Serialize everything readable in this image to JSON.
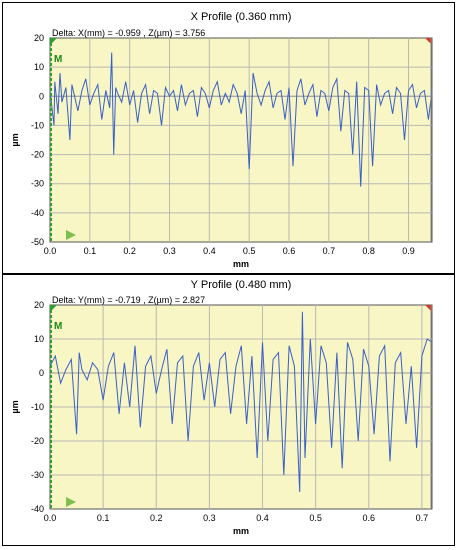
{
  "chart_data": [
    {
      "type": "line",
      "title": "X Profile (0.360 mm)",
      "annotation": "Delta:  X(mm) = -0.959 ,  Z(µm) = 3.756",
      "marker_label": "M",
      "xlabel": "mm",
      "ylabel": "µm",
      "xlim": [
        0.0,
        0.959
      ],
      "ylim": [
        -50,
        20
      ],
      "x_ticks": [
        "0.0",
        "0.1",
        "0.2",
        "0.3",
        "0.4",
        "0.5",
        "0.6",
        "0.7",
        "0.8",
        "0.9"
      ],
      "y_ticks": [
        "20",
        "10",
        "0",
        "-10",
        "-20",
        "-30",
        "-40",
        "-50"
      ],
      "grid": true,
      "line_color": "#3a5fc8",
      "background_color": "#f7f6c4",
      "series": [
        {
          "x": [
            0.0,
            0.01,
            0.012,
            0.02,
            0.025,
            0.03,
            0.04,
            0.05,
            0.055,
            0.06,
            0.07,
            0.08,
            0.09,
            0.1,
            0.11,
            0.12,
            0.13,
            0.14,
            0.15,
            0.155,
            0.16,
            0.165,
            0.17,
            0.18,
            0.19,
            0.2,
            0.21,
            0.22,
            0.23,
            0.24,
            0.25,
            0.26,
            0.27,
            0.28,
            0.29,
            0.3,
            0.31,
            0.32,
            0.33,
            0.34,
            0.35,
            0.36,
            0.37,
            0.38,
            0.39,
            0.4,
            0.41,
            0.42,
            0.43,
            0.44,
            0.45,
            0.46,
            0.47,
            0.48,
            0.49,
            0.5,
            0.51,
            0.52,
            0.53,
            0.54,
            0.55,
            0.56,
            0.57,
            0.58,
            0.59,
            0.6,
            0.61,
            0.62,
            0.63,
            0.64,
            0.65,
            0.66,
            0.67,
            0.68,
            0.69,
            0.7,
            0.71,
            0.72,
            0.73,
            0.74,
            0.75,
            0.76,
            0.77,
            0.78,
            0.79,
            0.8,
            0.81,
            0.82,
            0.83,
            0.84,
            0.85,
            0.86,
            0.87,
            0.88,
            0.89,
            0.9,
            0.91,
            0.92,
            0.93,
            0.94,
            0.95,
            0.959
          ],
          "y": [
            2,
            -10,
            5,
            -6,
            8,
            -2,
            3,
            -15,
            4,
            1,
            -5,
            2,
            6,
            -3,
            1,
            4,
            -8,
            2,
            -4,
            15,
            -20,
            3,
            1,
            -2,
            5,
            -3,
            2,
            -9,
            1,
            4,
            -6,
            2,
            1,
            -10,
            3,
            0,
            2,
            -5,
            4,
            -3,
            1,
            2,
            -7,
            3,
            1,
            -4,
            2,
            5,
            -3,
            1,
            -2,
            4,
            1,
            -6,
            2,
            -25,
            8,
            1,
            -3,
            2,
            5,
            -4,
            1,
            2,
            -8,
            3,
            -24,
            2,
            6,
            -3,
            1,
            4,
            -7,
            2,
            1,
            -5,
            3,
            6,
            -12,
            2,
            1,
            -20,
            5,
            -31,
            3,
            2,
            -24,
            4,
            -3,
            1,
            2,
            -6,
            3,
            1,
            -15,
            2,
            4,
            -4,
            1,
            2,
            -8,
            2
          ]
        }
      ]
    },
    {
      "type": "line",
      "title": "Y Profile (0.480 mm)",
      "annotation": "Delta:  Y(mm) = -0.719 ,  Z(µm) = 2.827",
      "marker_label": "M",
      "xlabel": "mm",
      "ylabel": "µm",
      "xlim": [
        0.0,
        0.719
      ],
      "ylim": [
        -40,
        20
      ],
      "x_ticks": [
        "0.0",
        "0.1",
        "0.2",
        "0.3",
        "0.4",
        "0.5",
        "0.6",
        "0.7"
      ],
      "y_ticks": [
        "20",
        "10",
        "0",
        "-10",
        "-20",
        "-30",
        "-40"
      ],
      "grid": true,
      "line_color": "#3a5fc8",
      "background_color": "#f7f6c4",
      "series": [
        {
          "x": [
            0.0,
            0.01,
            0.02,
            0.03,
            0.04,
            0.05,
            0.055,
            0.06,
            0.07,
            0.08,
            0.09,
            0.1,
            0.11,
            0.12,
            0.13,
            0.14,
            0.15,
            0.16,
            0.17,
            0.18,
            0.19,
            0.2,
            0.21,
            0.22,
            0.23,
            0.24,
            0.25,
            0.26,
            0.27,
            0.28,
            0.29,
            0.3,
            0.31,
            0.32,
            0.33,
            0.34,
            0.35,
            0.36,
            0.37,
            0.38,
            0.39,
            0.4,
            0.41,
            0.42,
            0.43,
            0.44,
            0.45,
            0.46,
            0.47,
            0.475,
            0.48,
            0.49,
            0.5,
            0.51,
            0.52,
            0.53,
            0.54,
            0.55,
            0.56,
            0.57,
            0.58,
            0.59,
            0.6,
            0.61,
            0.62,
            0.63,
            0.64,
            0.65,
            0.66,
            0.67,
            0.68,
            0.69,
            0.7,
            0.71,
            0.719
          ],
          "y": [
            2,
            5,
            -3,
            1,
            4,
            -18,
            6,
            1,
            -2,
            3,
            1,
            -8,
            2,
            6,
            -12,
            3,
            -10,
            8,
            -16,
            2,
            5,
            -6,
            1,
            7,
            -15,
            3,
            5,
            -20,
            2,
            6,
            -8,
            3,
            -10,
            4,
            6,
            -12,
            2,
            8,
            -15,
            5,
            -25,
            9,
            -20,
            4,
            6,
            -30,
            8,
            2,
            -35,
            18,
            -25,
            10,
            -15,
            8,
            3,
            -22,
            6,
            -28,
            9,
            4,
            -20,
            7,
            2,
            -18,
            5,
            8,
            -26,
            3,
            6,
            -15,
            2,
            -22,
            5,
            10,
            9
          ]
        }
      ]
    }
  ]
}
